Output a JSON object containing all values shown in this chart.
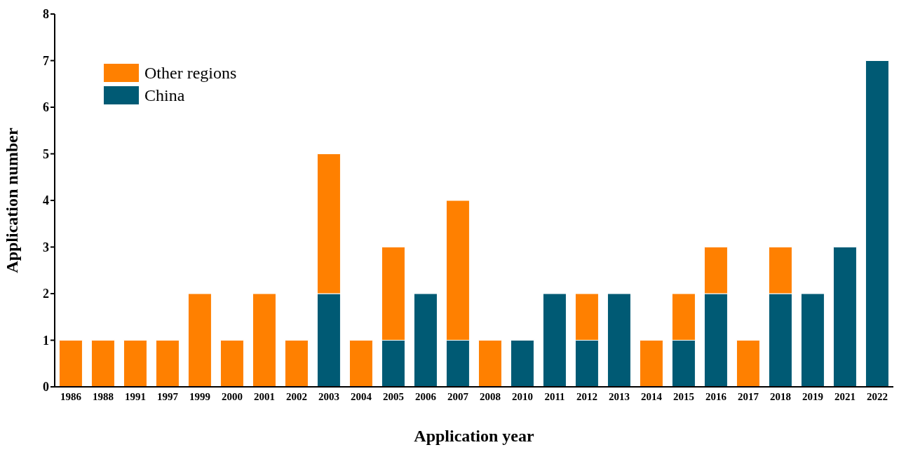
{
  "chart_data": {
    "type": "bar",
    "xlabel": "Application year",
    "ylabel": "Application number",
    "categories": [
      "1986",
      "1988",
      "1991",
      "1997",
      "1999",
      "2000",
      "2001",
      "2002",
      "2003",
      "2004",
      "2005",
      "2006",
      "2007",
      "2008",
      "2010",
      "2011",
      "2012",
      "2013",
      "2014",
      "2015",
      "2016",
      "2017",
      "2018",
      "2019",
      "2021",
      "2022"
    ],
    "stacked": true,
    "series": [
      {
        "name": "China",
        "color": "#005a74",
        "values": [
          0,
          0,
          0,
          0,
          0,
          0,
          0,
          0,
          2,
          0,
          1,
          2,
          1,
          0,
          1,
          2,
          1,
          2,
          0,
          1,
          2,
          0,
          2,
          2,
          3,
          7
        ]
      },
      {
        "name": "Other regions",
        "color": "#ff8000",
        "values": [
          1,
          1,
          1,
          1,
          2,
          1,
          2,
          1,
          3,
          1,
          2,
          0,
          3,
          1,
          0,
          0,
          1,
          0,
          1,
          1,
          1,
          1,
          1,
          0,
          0,
          0
        ]
      }
    ],
    "ylim": [
      0,
      8
    ],
    "yticks": [
      0,
      1,
      2,
      3,
      4,
      5,
      6,
      7,
      8
    ],
    "grid": false,
    "legend": "top left"
  }
}
